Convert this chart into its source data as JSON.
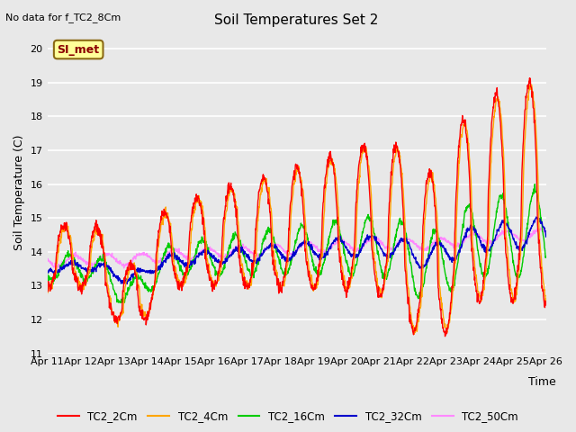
{
  "title": "Soil Temperatures Set 2",
  "top_left_note": "No data for f_TC2_8Cm",
  "ylabel": "Soil Temperature (C)",
  "xlabel": "Time",
  "annotation": "SI_met",
  "ylim": [
    11.0,
    20.5
  ],
  "yticks": [
    11.0,
    12.0,
    13.0,
    14.0,
    15.0,
    16.0,
    17.0,
    18.0,
    19.0,
    20.0
  ],
  "xtick_labels": [
    "Apr 11",
    "Apr 12",
    "Apr 13",
    "Apr 14",
    "Apr 15",
    "Apr 16",
    "Apr 17",
    "Apr 18",
    "Apr 19",
    "Apr 20",
    "Apr 21",
    "Apr 22",
    "Apr 23",
    "Apr 24",
    "Apr 25",
    "Apr 26"
  ],
  "series_colors": {
    "TC2_2Cm": "#FF0000",
    "TC2_4Cm": "#FFA500",
    "TC2_16Cm": "#00CC00",
    "TC2_32Cm": "#0000CC",
    "TC2_50Cm": "#FF88FF"
  },
  "bg_color": "#E8E8E8",
  "grid_color": "#FFFFFF",
  "title_fontsize": 11,
  "label_fontsize": 9,
  "tick_fontsize": 8,
  "n_days": 15,
  "pts_per_day": 96
}
